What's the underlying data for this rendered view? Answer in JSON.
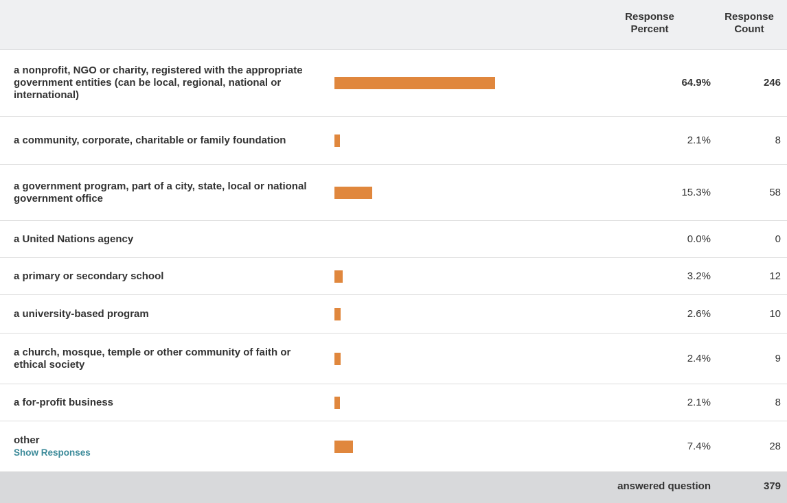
{
  "table": {
    "headers": {
      "percent": "Response Percent",
      "count": "Response Count"
    },
    "rows": [
      {
        "label": "a nonprofit, NGO or charity, registered with the appropriate government entities (can be local, regional, national or international)",
        "percent": 64.9,
        "percent_label": "64.9%",
        "count": 246
      },
      {
        "label": "a community, corporate, charitable or family foundation",
        "percent": 2.1,
        "percent_label": "2.1%",
        "count": 8
      },
      {
        "label": "a government program, part of a city, state, local or national government office",
        "percent": 15.3,
        "percent_label": "15.3%",
        "count": 58
      },
      {
        "label": "a United Nations agency",
        "percent": 0.0,
        "percent_label": "0.0%",
        "count": 0
      },
      {
        "label": "a primary or secondary school",
        "percent": 3.2,
        "percent_label": "3.2%",
        "count": 12
      },
      {
        "label": "a university-based program",
        "percent": 2.6,
        "percent_label": "2.6%",
        "count": 10
      },
      {
        "label": "a church, mosque, temple or other community of faith or ethical society",
        "percent": 2.4,
        "percent_label": "2.4%",
        "count": 9
      },
      {
        "label": "a for-profit business",
        "percent": 2.1,
        "percent_label": "2.1%",
        "count": 8
      },
      {
        "label": "other",
        "link": "Show Responses",
        "percent": 7.4,
        "percent_label": "7.4%",
        "count": 28
      }
    ],
    "footer": {
      "label": "answered question",
      "count": 379
    }
  }
}
